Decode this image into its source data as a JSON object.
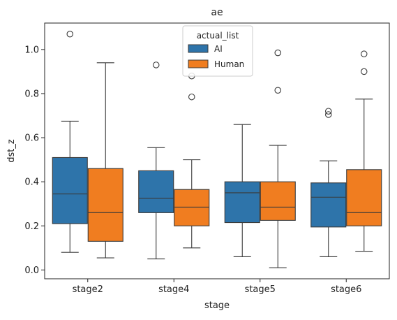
{
  "chart_data": {
    "type": "boxplot",
    "title": "ae",
    "xlabel": "stage",
    "ylabel": "dst_z",
    "categories": [
      "stage2",
      "stage4",
      "stage5",
      "stage6"
    ],
    "ylim": [
      -0.04,
      1.12
    ],
    "yticks": [
      "0.0",
      "0.2",
      "0.4",
      "0.6",
      "0.8",
      "1.0"
    ],
    "grid": false,
    "legend": {
      "title": "actual_list",
      "placement": "top-center"
    },
    "series": [
      {
        "name": "AI",
        "color": "#2e74aa",
        "boxes": [
          {
            "whisker_low": 0.08,
            "q1": 0.21,
            "median": 0.345,
            "q3": 0.51,
            "whisker_high": 0.675,
            "outliers": [
              1.07
            ]
          },
          {
            "whisker_low": 0.05,
            "q1": 0.26,
            "median": 0.325,
            "q3": 0.45,
            "whisker_high": 0.555,
            "outliers": [
              0.93
            ]
          },
          {
            "whisker_low": 0.06,
            "q1": 0.215,
            "median": 0.35,
            "q3": 0.4,
            "whisker_high": 0.66,
            "outliers": []
          },
          {
            "whisker_low": 0.06,
            "q1": 0.195,
            "median": 0.33,
            "q3": 0.395,
            "whisker_high": 0.495,
            "outliers": [
              0.72,
              0.705
            ]
          }
        ]
      },
      {
        "name": "Human",
        "color": "#f07d20",
        "boxes": [
          {
            "whisker_low": 0.055,
            "q1": 0.13,
            "median": 0.26,
            "q3": 0.46,
            "whisker_high": 0.94,
            "outliers": []
          },
          {
            "whisker_low": 0.1,
            "q1": 0.2,
            "median": 0.285,
            "q3": 0.365,
            "whisker_high": 0.5,
            "outliers": [
              0.88,
              0.785
            ]
          },
          {
            "whisker_low": 0.01,
            "q1": 0.225,
            "median": 0.285,
            "q3": 0.4,
            "whisker_high": 0.565,
            "outliers": [
              0.985,
              0.815
            ]
          },
          {
            "whisker_low": 0.085,
            "q1": 0.2,
            "median": 0.26,
            "q3": 0.455,
            "whisker_high": 0.775,
            "outliers": [
              0.98,
              0.9
            ]
          }
        ]
      }
    ]
  }
}
